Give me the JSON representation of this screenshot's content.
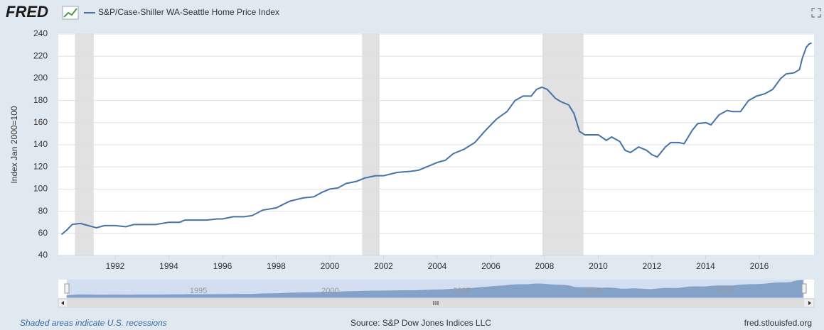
{
  "chart_data": {
    "type": "line",
    "brand": "FRED",
    "title": "S&P/Case-Shiller WA-Seattle Home Price Index",
    "y_label": "Index Jan 2000=100",
    "note": "Shaded areas indicate U.S. recessions",
    "source": "Source: S&P Dow Jones Indices LLC",
    "site": "fred.stlouisfed.org",
    "x": [
      1990.0,
      1990.2,
      1990.4,
      1990.7,
      1991.0,
      1991.3,
      1991.6,
      1992.0,
      1992.4,
      1992.7,
      1993.0,
      1993.5,
      1994.0,
      1994.4,
      1994.6,
      1995.0,
      1995.4,
      1995.8,
      1996.0,
      1996.4,
      1996.8,
      1997.1,
      1997.5,
      1998.0,
      1998.5,
      1999.0,
      1999.4,
      1999.7,
      2000.0,
      2000.3,
      2000.6,
      2001.0,
      2001.3,
      2001.7,
      2002.0,
      2002.5,
      2003.0,
      2003.3,
      2003.7,
      2004.0,
      2004.3,
      2004.6,
      2005.0,
      2005.4,
      2005.8,
      2006.2,
      2006.6,
      2006.9,
      2007.2,
      2007.5,
      2007.7,
      2007.9,
      2008.1,
      2008.4,
      2008.6,
      2008.9,
      2009.1,
      2009.3,
      2009.5,
      2010.0,
      2010.3,
      2010.5,
      2010.8,
      2011.0,
      2011.2,
      2011.5,
      2011.8,
      2012.0,
      2012.2,
      2012.5,
      2012.7,
      2013.0,
      2013.2,
      2013.5,
      2013.7,
      2014.0,
      2014.2,
      2014.5,
      2014.8,
      2015.0,
      2015.3,
      2015.6,
      2015.9,
      2016.2,
      2016.5,
      2016.8,
      2017.0,
      2017.3,
      2017.5,
      2017.6,
      2017.75,
      2017.85,
      2017.95
    ],
    "series": [
      {
        "name": "S&P/Case-Shiller WA-Seattle Home Price Index",
        "color": "#4572a7",
        "values": [
          59,
          63,
          68,
          69,
          67,
          65,
          67,
          67,
          66,
          68,
          68,
          68,
          70,
          70,
          72,
          72,
          72,
          73,
          73,
          75,
          75,
          76,
          81,
          83,
          89,
          92,
          93,
          97,
          100,
          101,
          105,
          107,
          110,
          112,
          112,
          115,
          116,
          117,
          121,
          124,
          126,
          132,
          136,
          142,
          153,
          163,
          170,
          180,
          184,
          184,
          190,
          192,
          190,
          182,
          179,
          176,
          168,
          152,
          149,
          149,
          144,
          147,
          143,
          135,
          133,
          138,
          135,
          131,
          129,
          138,
          142,
          142,
          141,
          153,
          159,
          160,
          158,
          167,
          171,
          170,
          170,
          180,
          184,
          186,
          190,
          200,
          204,
          205,
          208,
          218,
          228,
          231,
          232
        ]
      }
    ],
    "recessions": [
      [
        1990.5,
        1991.2
      ],
      [
        2001.2,
        2001.85
      ],
      [
        2007.92,
        2009.45
      ]
    ],
    "xlim": [
      1990,
      2018
    ],
    "xticks": [
      1992,
      1994,
      1996,
      1998,
      2000,
      2002,
      2004,
      2006,
      2008,
      2010,
      2012,
      2014,
      2016
    ],
    "ylim": [
      40,
      240
    ],
    "yticks": [
      40,
      60,
      80,
      100,
      120,
      140,
      160,
      180,
      200,
      220,
      240
    ],
    "navigator_ticks": [
      1995,
      2000,
      2005,
      2010,
      2015
    ],
    "grid": true
  }
}
